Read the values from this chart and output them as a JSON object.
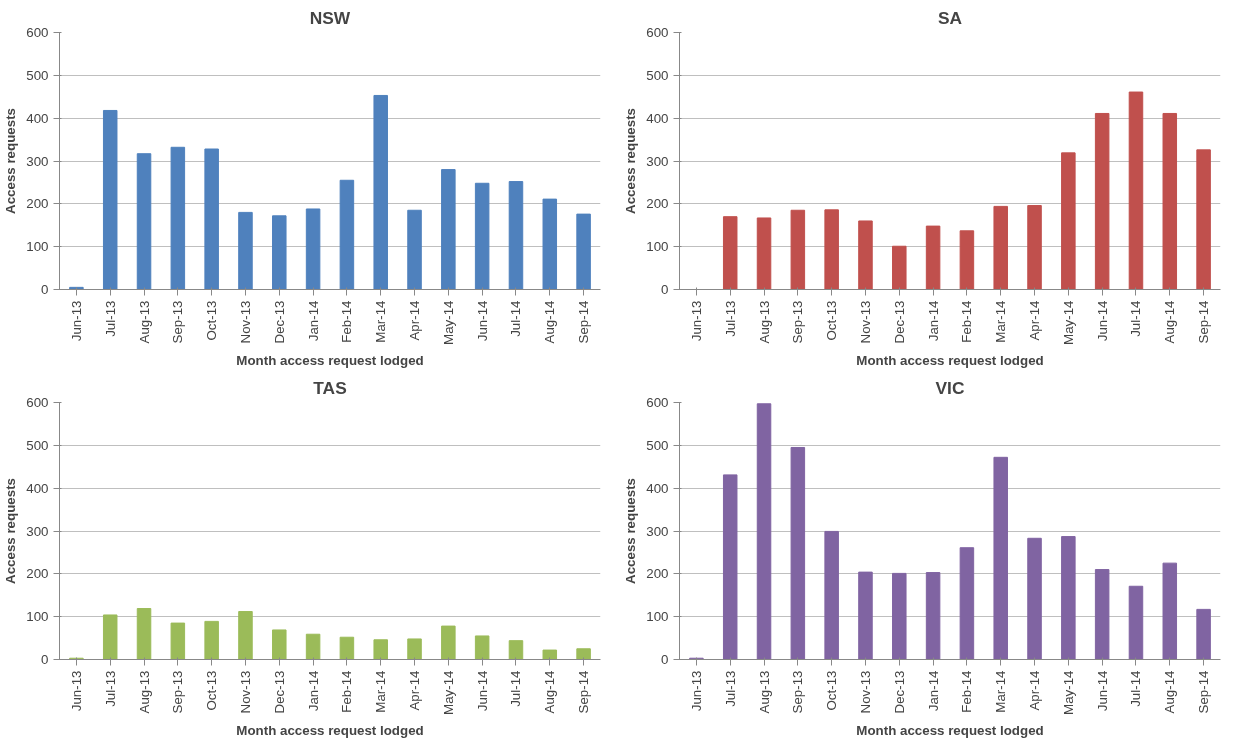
{
  "chart_data": [
    {
      "type": "bar",
      "title": "NSW",
      "xlabel": "Month access request lodged",
      "ylabel": "Access requests",
      "categories": [
        "Jun-13",
        "Jul-13",
        "Aug-13",
        "Sep-13",
        "Oct-13",
        "Nov-13",
        "Dec-13",
        "Jan-14",
        "Feb-14",
        "Mar-14",
        "Apr-14",
        "May-14",
        "Jun-14",
        "Jul-14",
        "Aug-14",
        "Sep-14"
      ],
      "ylim": [
        0,
        600
      ],
      "yticks": [
        0,
        100,
        200,
        300,
        400,
        500,
        600
      ],
      "grid": "y",
      "series": [
        {
          "color": "#4f81bd",
          "values": [
            5,
            418,
            317,
            332,
            328,
            180,
            172,
            188,
            255,
            453,
            185,
            280,
            248,
            252,
            211,
            176
          ]
        }
      ]
    },
    {
      "type": "bar",
      "title": "SA",
      "xlabel": "Month access request lodged",
      "ylabel": "Access requests",
      "categories": [
        "Jun-13",
        "Jul-13",
        "Aug-13",
        "Sep-13",
        "Oct-13",
        "Nov-13",
        "Dec-13",
        "Jan-14",
        "Feb-14",
        "Mar-14",
        "Apr-14",
        "May-14",
        "Jun-14",
        "Jul-14",
        "Aug-14",
        "Sep-14"
      ],
      "ylim": [
        0,
        600
      ],
      "yticks": [
        0,
        100,
        200,
        300,
        400,
        500,
        600
      ],
      "grid": "y",
      "series": [
        {
          "color": "#c0504d",
          "values": [
            0,
            170,
            167,
            185,
            186,
            160,
            101,
            148,
            137,
            194,
            196,
            319,
            411,
            461,
            411,
            326
          ]
        }
      ]
    },
    {
      "type": "bar",
      "title": "TAS",
      "xlabel": "Month access request lodged",
      "ylabel": "Access requests",
      "categories": [
        "Jun-13",
        "Jul-13",
        "Aug-13",
        "Sep-13",
        "Oct-13",
        "Nov-13",
        "Dec-13",
        "Jan-14",
        "Feb-14",
        "Mar-14",
        "Apr-14",
        "May-14",
        "Jun-14",
        "Jul-14",
        "Aug-14",
        "Sep-14"
      ],
      "ylim": [
        0,
        600
      ],
      "yticks": [
        0,
        100,
        200,
        300,
        400,
        500,
        600
      ],
      "grid": "y",
      "series": [
        {
          "color": "#9bbb59",
          "values": [
            3,
            104,
            119,
            85,
            89,
            112,
            69,
            59,
            52,
            46,
            48,
            78,
            55,
            44,
            22,
            25
          ]
        }
      ]
    },
    {
      "type": "bar",
      "title": "VIC",
      "xlabel": "Month access request lodged",
      "ylabel": "Access requests",
      "categories": [
        "Jun-13",
        "Jul-13",
        "Aug-13",
        "Sep-13",
        "Oct-13",
        "Nov-13",
        "Dec-13",
        "Jan-14",
        "Feb-14",
        "Mar-14",
        "Apr-14",
        "May-14",
        "Jun-14",
        "Jul-14",
        "Aug-14",
        "Sep-14"
      ],
      "ylim": [
        0,
        600
      ],
      "yticks": [
        0,
        100,
        200,
        300,
        400,
        500,
        600
      ],
      "grid": "y",
      "series": [
        {
          "color": "#8064a2",
          "values": [
            3,
            431,
            597,
            495,
            299,
            204,
            201,
            203,
            261,
            472,
            283,
            287,
            210,
            171,
            225,
            117
          ]
        }
      ]
    }
  ]
}
